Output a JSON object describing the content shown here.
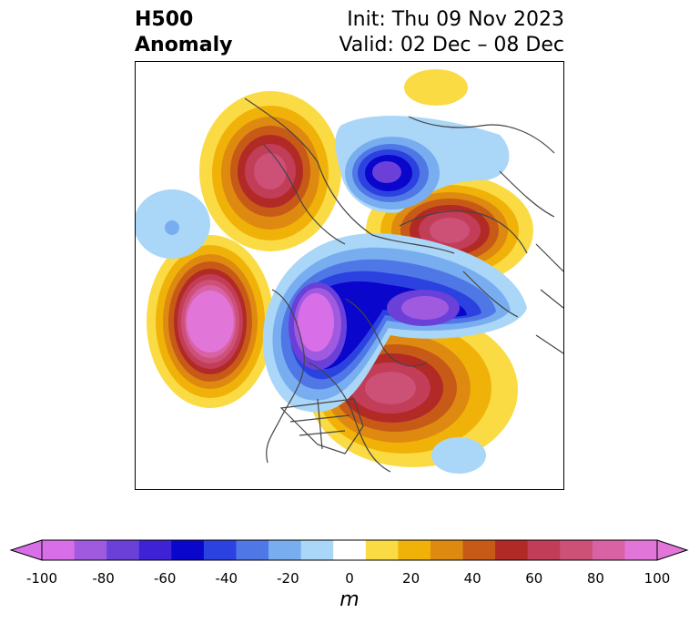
{
  "title": {
    "line1": "H500",
    "line2": "Anomaly",
    "init": "Init: Thu 09 Nov 2023",
    "valid": "Valid: 02 Dec – 08 Dec"
  },
  "colorbar": {
    "unit": "m",
    "ticks": [
      "-100",
      "-80",
      "-60",
      "-40",
      "-20",
      "0",
      "20",
      "40",
      "60",
      "80",
      "100"
    ],
    "levels": [
      -100,
      -90,
      -80,
      -70,
      -60,
      -50,
      -40,
      -30,
      -20,
      -10,
      10,
      20,
      30,
      40,
      50,
      60,
      70,
      80,
      90,
      100
    ],
    "colors": [
      "#d86fe8",
      "#a05ae0",
      "#6a40d8",
      "#3e22d6",
      "#0a06cc",
      "#2c42e0",
      "#4f78e6",
      "#78aef0",
      "#aad6f8",
      "#ffffff",
      "#fbdb44",
      "#f0b208",
      "#de8a10",
      "#c85a18",
      "#b22a26",
      "#c23d58",
      "#cd5077",
      "#d862a4",
      "#e275d8"
    ],
    "extend": "both"
  },
  "map_data": {
    "type": "contour-anomaly",
    "projection": "polar",
    "anomalies": [
      {
        "center": "Alaska / Yukon",
        "sign": "positive",
        "peak": 80
      },
      {
        "center": "Scandinavia / Barents",
        "sign": "positive",
        "peak": 80
      },
      {
        "center": "Northeast Pacific",
        "sign": "negative",
        "peak": -100
      },
      {
        "center": "Northern Canada / Hudson Bay",
        "sign": "negative",
        "peak": -100
      },
      {
        "center": "Northern Siberia",
        "sign": "negative",
        "peak": -80
      },
      {
        "center": "Greenland",
        "sign": "negative",
        "peak": -70
      },
      {
        "center": "Eastern United States",
        "sign": "positive",
        "peak": 80
      }
    ]
  }
}
